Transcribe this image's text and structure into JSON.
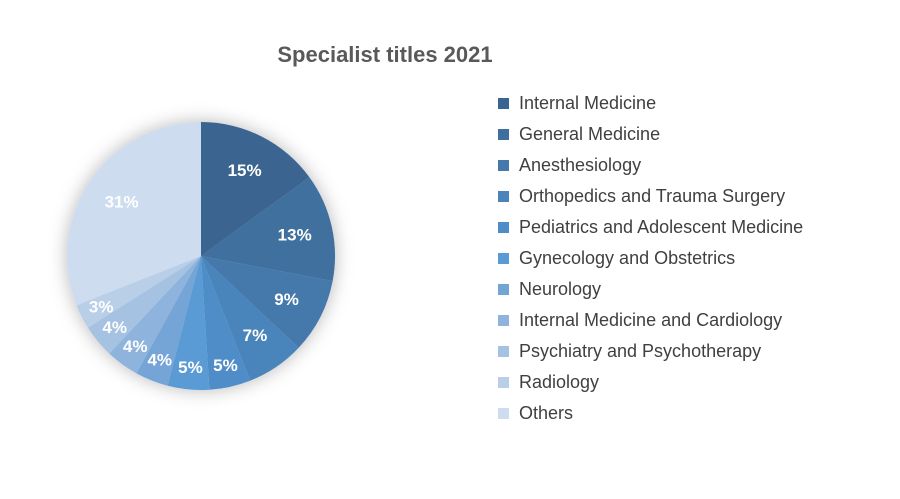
{
  "chart_data": {
    "type": "pie",
    "title": "Specialist titles 2021",
    "legend_position": "right",
    "slices": [
      {
        "name": "Internal Medicine",
        "value": 15,
        "label": "15%",
        "color": "#3a6590"
      },
      {
        "name": "General Medicine",
        "value": 13,
        "label": "13%",
        "color": "#3f6f9e"
      },
      {
        "name": "Anesthesiology",
        "value": 9,
        "label": "9%",
        "color": "#4579ac"
      },
      {
        "name": "Orthopedics and Trauma Surgery",
        "value": 7,
        "label": "7%",
        "color": "#4a84ba"
      },
      {
        "name": "Pediatrics and Adolescent Medicine",
        "value": 5,
        "label": "5%",
        "color": "#4f8dc8"
      },
      {
        "name": "Gynecology and Obstetrics",
        "value": 5,
        "label": "5%",
        "color": "#5a9bd5"
      },
      {
        "name": "Neurology",
        "value": 4,
        "label": "4%",
        "color": "#74a4d6"
      },
      {
        "name": "Internal Medicine and Cardiology",
        "value": 4,
        "label": "4%",
        "color": "#8eb3dc"
      },
      {
        "name": "Psychiatry and Psychotherapy",
        "value": 4,
        "label": "4%",
        "color": "#a6c2e3"
      },
      {
        "name": "Radiology",
        "value": 3,
        "label": "3%",
        "color": "#b9cfe8"
      },
      {
        "name": "Others",
        "value": 31,
        "label": "31%",
        "color": "#cddcef"
      }
    ]
  }
}
